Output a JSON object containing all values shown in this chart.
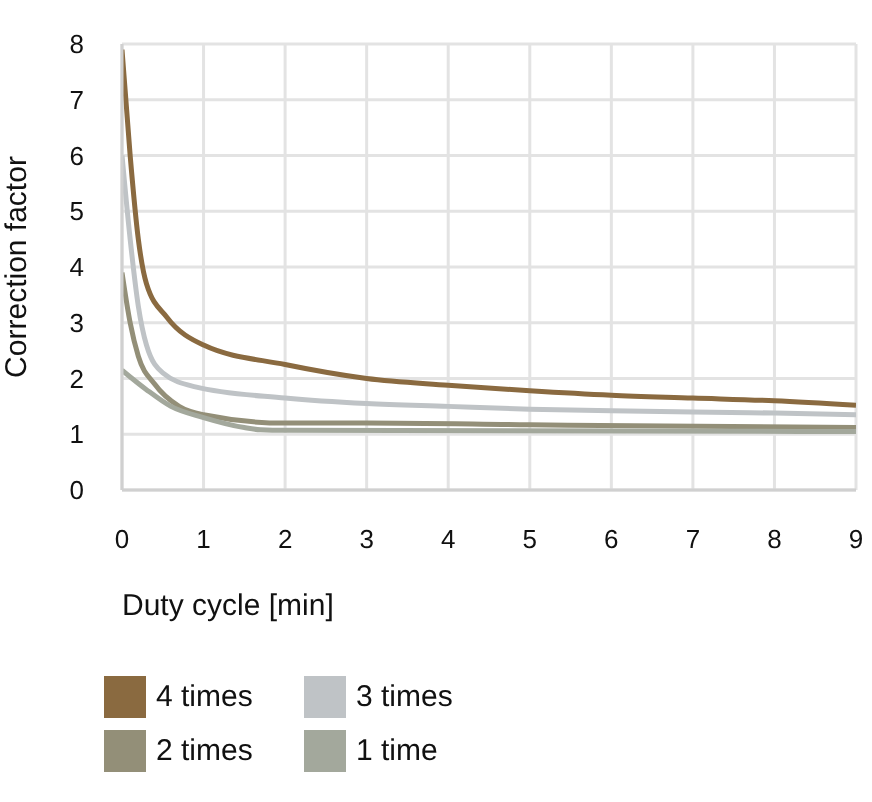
{
  "chart_data": {
    "type": "line",
    "xlabel": "Duty cycle [min]",
    "ylabel": "Correction factor",
    "xlim": [
      0,
      9
    ],
    "xticks": [
      0,
      1,
      2,
      3,
      4,
      5,
      6,
      7,
      8,
      9
    ],
    "ylim": [
      0,
      8
    ],
    "yticks": [
      0,
      1,
      2,
      3,
      4,
      5,
      6,
      7,
      8
    ],
    "grid": true,
    "legend": "bottom",
    "marker": "none",
    "series": [
      {
        "name": "4 times",
        "color": "#8a6a40",
        "x": [
          0,
          0.1,
          0.2,
          0.3,
          0.55,
          1,
          2,
          3,
          4,
          5,
          6,
          7,
          8,
          9
        ],
        "values": [
          7.9,
          6,
          4.5,
          3.7,
          3.1,
          2.6,
          2.25,
          2,
          1.88,
          1.78,
          1.7,
          1.65,
          1.6,
          1.52
        ]
      },
      {
        "name": "3 times",
        "color": "#bfc3c6",
        "x": [
          0,
          0.1,
          0.2,
          0.3,
          0.5,
          0.9,
          2,
          3,
          4,
          5,
          6,
          7,
          8,
          9
        ],
        "values": [
          6,
          4.5,
          3.3,
          2.6,
          2.1,
          1.85,
          1.65,
          1.55,
          1.5,
          1.45,
          1.42,
          1.4,
          1.38,
          1.35
        ]
      },
      {
        "name": "2 times",
        "color": "#938f78",
        "x": [
          0,
          0.1,
          0.2,
          0.4,
          0.7,
          1,
          2,
          3,
          5,
          9
        ],
        "values": [
          3.9,
          3,
          2.4,
          1.9,
          1.5,
          1.35,
          1.2,
          1.2,
          1.17,
          1.12
        ]
      },
      {
        "name": "1 time",
        "color": "#a3a89c",
        "x": [
          0,
          0.3,
          0.6,
          1,
          1.5,
          1.7,
          2,
          9
        ],
        "values": [
          2.15,
          1.8,
          1.5,
          1.3,
          1.12,
          1.08,
          1.07,
          1.05
        ]
      }
    ]
  }
}
